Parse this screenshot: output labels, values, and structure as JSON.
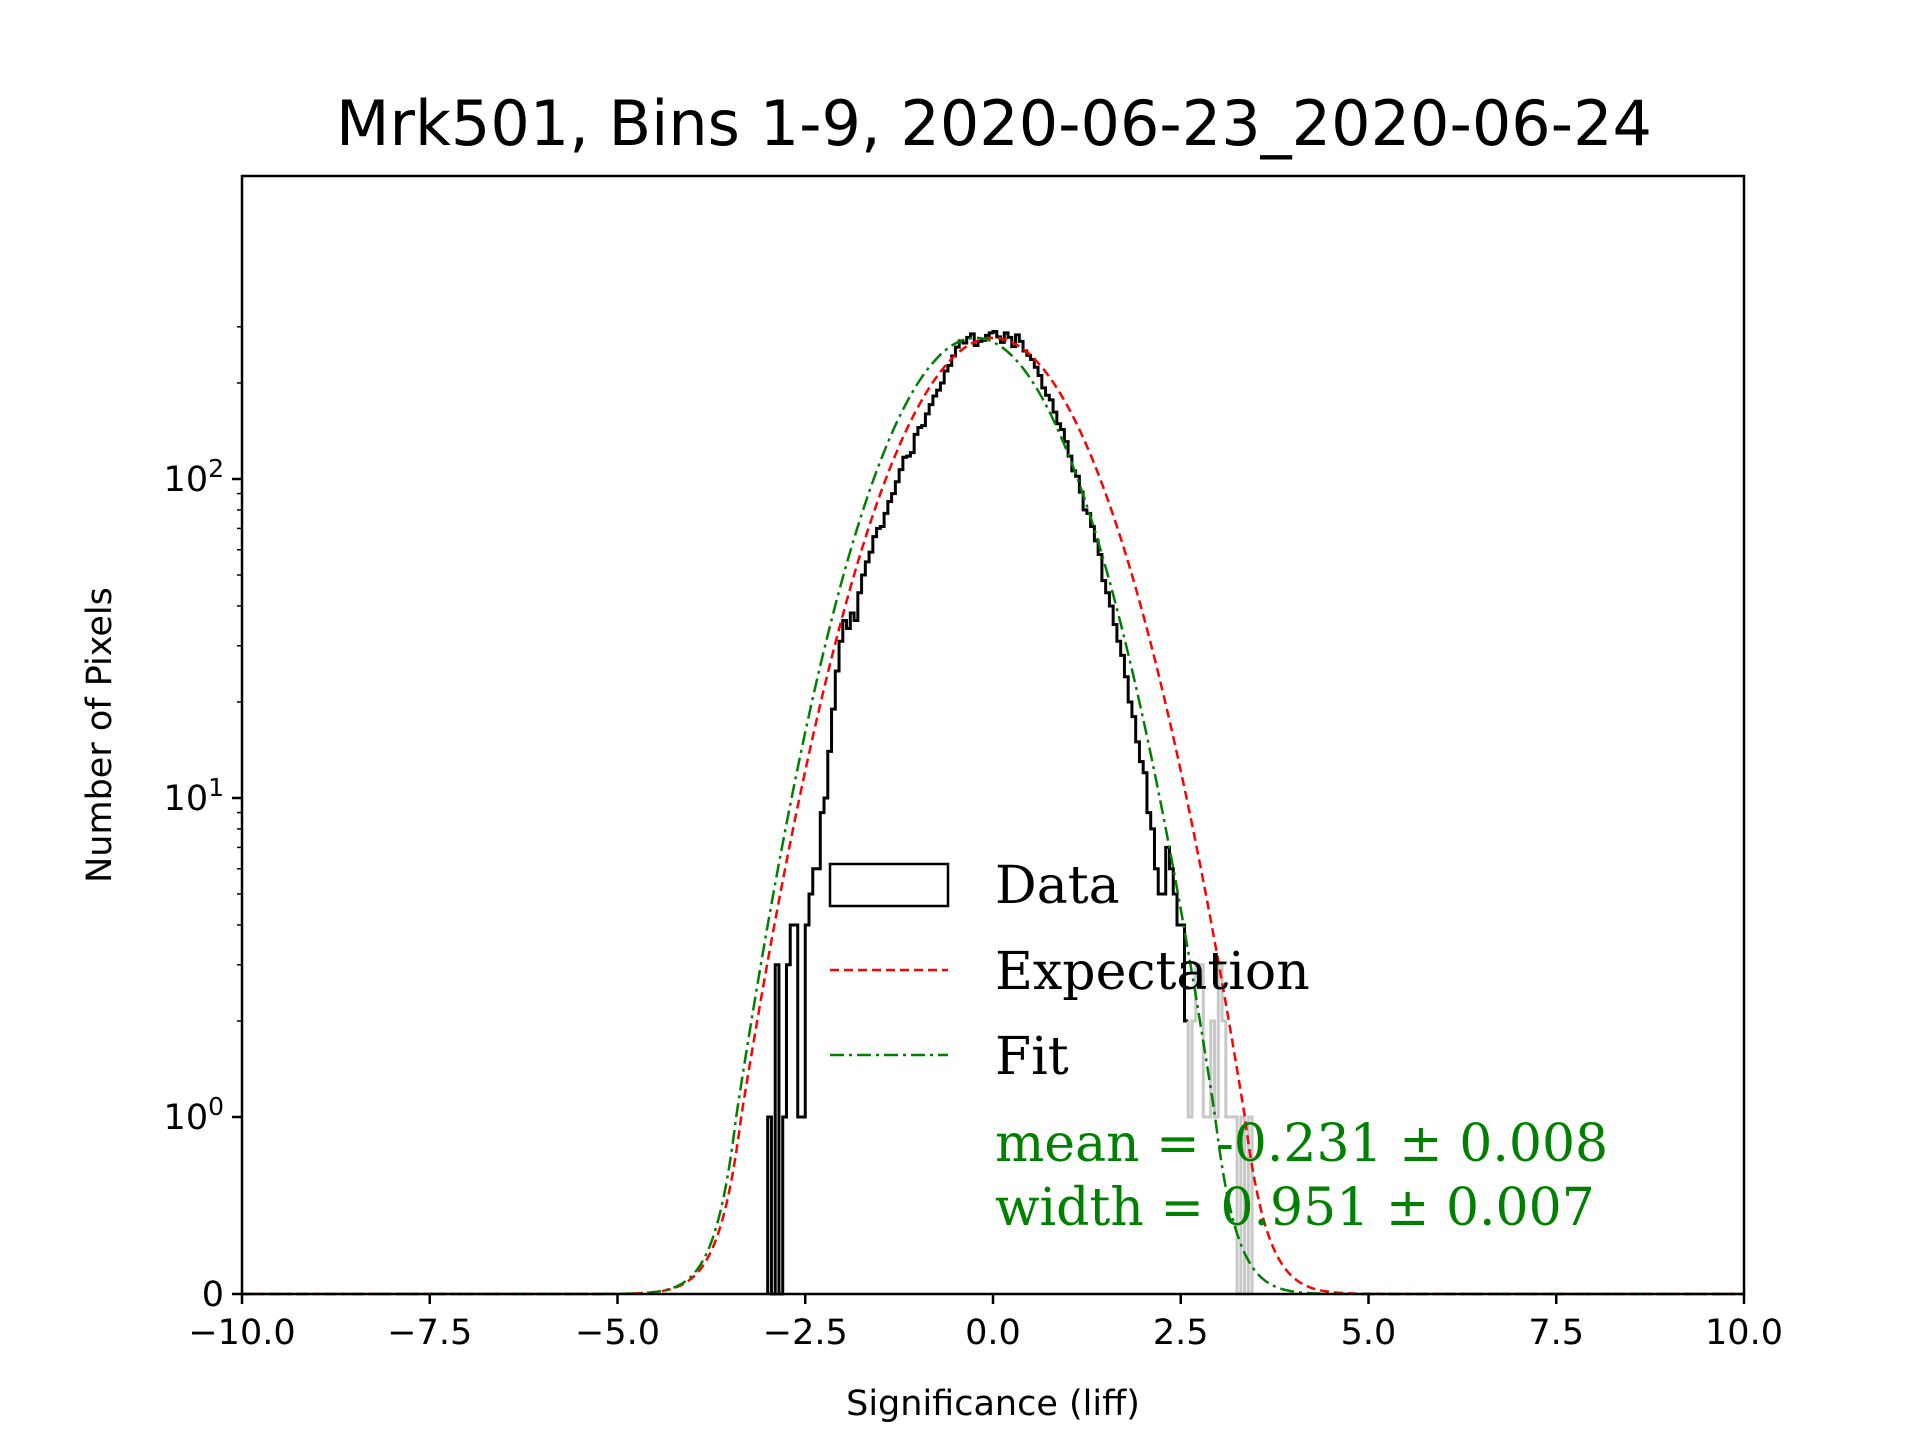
{
  "chart_data": {
    "type": "histogram",
    "title": "Mrk501, Bins 1-9, 2020-06-23_2020-06-24",
    "xlabel": "Significance (liff)",
    "ylabel": "Number of Pixels",
    "xlim": [
      -10,
      10
    ],
    "yscale": "symlog",
    "x_ticks": [
      "−10.0",
      "−7.5",
      "−5.0",
      "−2.5",
      "0.0",
      "2.5",
      "5.0",
      "7.5",
      "10.0"
    ],
    "x_tick_values": [
      -10,
      -7.5,
      -5,
      -2.5,
      0,
      2.5,
      5,
      7.5,
      10
    ],
    "y_ticks": [
      {
        "value": 0,
        "base": "0",
        "exp": ""
      },
      {
        "value": 1,
        "base": "10",
        "exp": "0"
      },
      {
        "value": 10,
        "base": "10",
        "exp": "1"
      },
      {
        "value": 100,
        "base": "10",
        "exp": "2"
      }
    ],
    "histogram": {
      "name": "Data",
      "bin_width": 0.05,
      "x_start": -3.0,
      "counts": [
        1,
        0,
        3,
        0,
        1,
        3,
        4,
        4,
        1,
        1,
        4,
        5,
        6,
        6,
        9,
        10,
        14,
        19,
        25,
        31,
        36,
        34,
        38,
        36,
        44,
        50,
        55,
        59,
        66,
        70,
        71,
        78,
        85,
        90,
        98,
        107,
        117,
        118,
        121,
        138,
        145,
        147,
        160,
        171,
        182,
        190,
        200,
        218,
        227,
        243,
        259,
        271,
        267,
        278,
        285,
        262,
        270,
        272,
        282,
        287,
        290,
        279,
        268,
        287,
        278,
        260,
        283,
        270,
        252,
        244,
        237,
        224,
        211,
        193,
        183,
        177,
        162,
        149,
        143,
        131,
        118,
        106,
        102,
        91,
        80,
        78,
        71,
        64,
        58,
        48,
        44,
        40,
        35,
        31,
        28,
        24,
        20,
        18,
        15,
        13,
        12,
        9,
        8,
        6,
        5,
        5,
        7,
        6,
        5,
        4,
        4,
        2,
        1,
        2,
        3,
        3,
        1,
        1,
        2,
        1,
        3,
        2,
        1,
        1,
        1,
        0,
        1,
        0,
        1
      ],
      "threshold_x": 2.6,
      "above_threshold_color": "#c8c8c8",
      "color": "#000000"
    },
    "series": [
      {
        "name": "Expectation",
        "mean": 0.0,
        "width": 1.0,
        "amplitude": 277,
        "color": "#ff0000",
        "style": "dashed"
      },
      {
        "name": "Fit",
        "mean": -0.231,
        "width": 0.951,
        "amplitude": 277,
        "color": "#008000",
        "style": "dashdot"
      }
    ],
    "legend": {
      "placement": "lower-center",
      "entries": [
        "Data",
        "Expectation",
        "Fit"
      ]
    },
    "annotations": {
      "color": "#008000",
      "mean_text": "mean = -0.231 ± 0.008",
      "width_text": "width = 0.951 ± 0.007"
    }
  }
}
